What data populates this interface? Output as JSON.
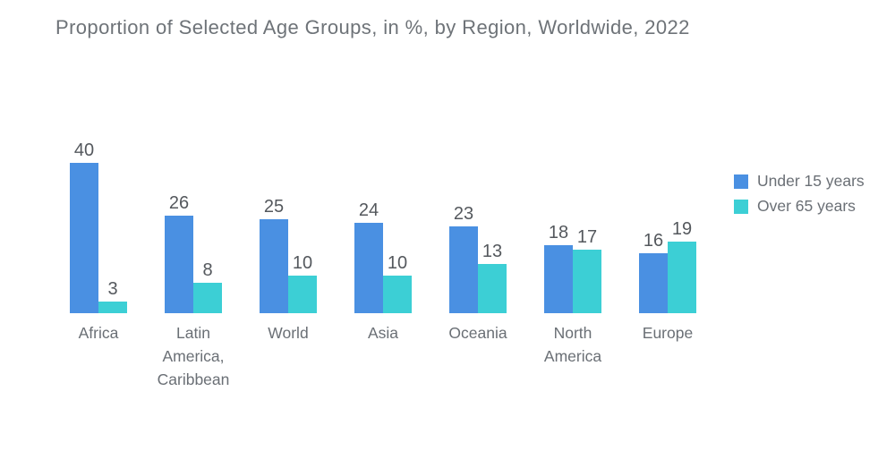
{
  "title": "Proportion of Selected Age Groups, in %, by Region, Worldwide, 2022",
  "colors": {
    "under15": "#4A90E2",
    "over65": "#3CCFD5",
    "title_text": "#6E7378",
    "axis_text": "#6A6F75",
    "value_text": "#54585D"
  },
  "chart_data": {
    "type": "bar",
    "title": "Proportion of Selected Age Groups, in %, by Region, Worldwide, 2022",
    "categories": [
      "Africa",
      "Latin America, Caribbean",
      "World",
      "Asia",
      "Oceania",
      "North America",
      "Europe"
    ],
    "category_labels": [
      "Africa",
      "Latin\nAmerica,\nCaribbean",
      "World",
      "Asia",
      "Oceania",
      "North\nAmerica",
      "Europe"
    ],
    "series": [
      {
        "name": "Under 15 years",
        "color": "#4A90E2",
        "values": [
          40,
          26,
          25,
          24,
          23,
          18,
          16
        ]
      },
      {
        "name": "Over 65 years",
        "color": "#3CCFD5",
        "values": [
          3,
          8,
          10,
          10,
          13,
          17,
          19
        ]
      }
    ],
    "xlabel": "",
    "ylabel": "",
    "ylim": [
      0,
      40
    ],
    "unit": "%",
    "grid": false,
    "value_labels": true,
    "legend_position": "right"
  }
}
